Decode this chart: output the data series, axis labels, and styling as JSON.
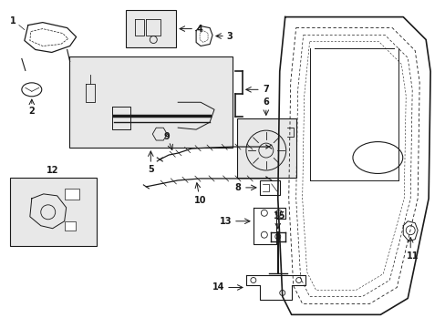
{
  "bg_color": "#ffffff",
  "line_color": "#1a1a1a",
  "box_bg": "#e8e8e8",
  "figsize": [
    4.89,
    3.6
  ],
  "dpi": 100,
  "label_fontsize": 7.0
}
